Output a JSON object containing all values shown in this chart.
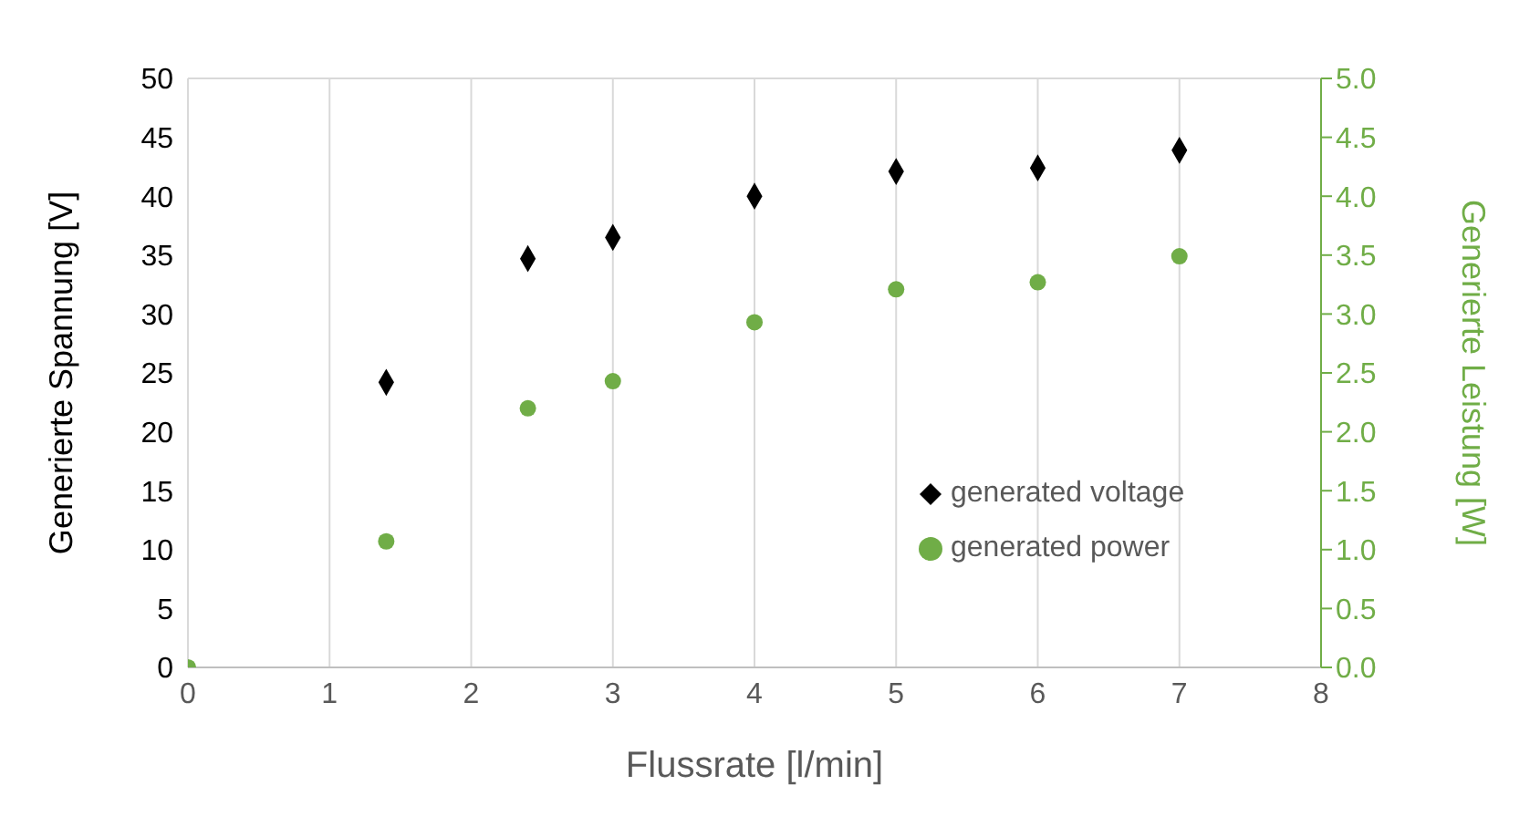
{
  "chart_data": {
    "type": "scatter",
    "xlabel": "Flussrate [l/min]",
    "ylabel": "Generierte Spannung [V]",
    "y2label": "Generierte Leistung [W]",
    "xlim": [
      0,
      8
    ],
    "xticks": [
      0,
      1,
      2,
      3,
      4,
      5,
      6,
      7,
      8
    ],
    "ylim": [
      0,
      50
    ],
    "yticks": [
      0,
      5,
      10,
      15,
      20,
      25,
      30,
      35,
      40,
      45,
      50
    ],
    "y2lim": [
      0,
      5
    ],
    "y2ticks": [
      {
        "value": 0,
        "label": "0.0"
      },
      {
        "value": 0.5,
        "label": "0.5"
      },
      {
        "value": 1,
        "label": "1.0"
      },
      {
        "value": 1.5,
        "label": "1.5"
      },
      {
        "value": 2,
        "label": "2.0"
      },
      {
        "value": 2.5,
        "label": "2.5"
      },
      {
        "value": 3,
        "label": "3.0"
      },
      {
        "value": 3.5,
        "label": "3.5"
      },
      {
        "value": 4,
        "label": "4.0"
      },
      {
        "value": 4.5,
        "label": "4.5"
      },
      {
        "value": 5,
        "label": "5.0"
      }
    ],
    "grid": true,
    "legend": "right",
    "series": [
      {
        "name": "generated voltage",
        "color": "#000000",
        "marker": "diamond",
        "x": [
          1.4,
          2.4,
          3,
          4,
          5,
          6,
          7
        ],
        "values": [
          24.2,
          34.7,
          36.5,
          40,
          42.1,
          42.4,
          43.9
        ]
      },
      {
        "name": "generated power",
        "color": "#70ad47",
        "marker": "circle",
        "axis": "y2",
        "x": [
          0,
          1.4,
          2.4,
          3,
          4,
          5,
          6,
          7
        ],
        "values": [
          0,
          1.07,
          2.2,
          2.43,
          2.93,
          3.21,
          3.27,
          3.49
        ]
      }
    ]
  }
}
